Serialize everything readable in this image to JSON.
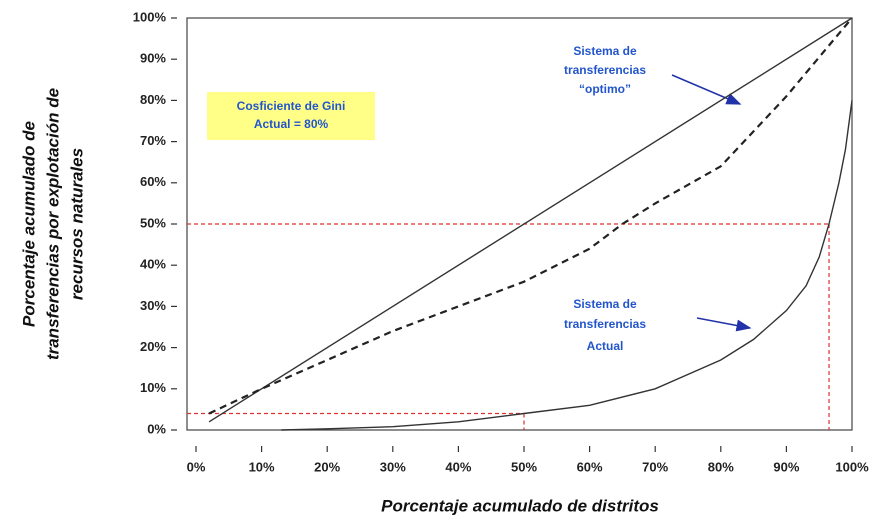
{
  "chart_data": {
    "type": "line",
    "xlabel": "Porcentaje acumulado de distritos",
    "ylabel": [
      "Porcentaje acumulado de",
      "transferencias por explotación de",
      "recursos naturales"
    ],
    "xlim": [
      0,
      100
    ],
    "ylim": [
      0,
      100
    ],
    "xticks": [
      {
        "value": 0,
        "label": "0%"
      },
      {
        "value": 10,
        "label": "10%"
      },
      {
        "value": 20,
        "label": "20%"
      },
      {
        "value": 30,
        "label": "30%"
      },
      {
        "value": 40,
        "label": "40%"
      },
      {
        "value": 50,
        "label": "50%"
      },
      {
        "value": 60,
        "label": "60%"
      },
      {
        "value": 70,
        "label": "70%"
      },
      {
        "value": 80,
        "label": "80%"
      },
      {
        "value": 90,
        "label": "90%"
      },
      {
        "value": 100,
        "label": "100%"
      }
    ],
    "yticks": [
      {
        "value": 0,
        "label": "0%"
      },
      {
        "value": 10,
        "label": "10%"
      },
      {
        "value": 20,
        "label": "20%"
      },
      {
        "value": 30,
        "label": "30%"
      },
      {
        "value": 40,
        "label": "40%"
      },
      {
        "value": 50,
        "label": "50%"
      },
      {
        "value": 60,
        "label": "60%"
      },
      {
        "value": 70,
        "label": "70%"
      },
      {
        "value": 80,
        "label": "80%"
      },
      {
        "value": 90,
        "label": "90%"
      },
      {
        "value": 100,
        "label": "100%"
      }
    ],
    "series": [
      {
        "color": "#333333",
        "dash": false,
        "x": [
          2,
          100
        ],
        "values": [
          2,
          100
        ]
      },
      {
        "color": "#222222",
        "dash": true,
        "x": [
          2,
          10,
          20,
          30,
          40,
          50,
          60,
          65,
          70,
          80,
          90,
          100
        ],
        "values": [
          4,
          10,
          17,
          24,
          30,
          36,
          44,
          50,
          55,
          64,
          81,
          100
        ]
      },
      {
        "color": "#333333",
        "dash": false,
        "x": [
          13,
          20,
          30,
          40,
          50,
          60,
          70,
          80,
          85,
          90,
          93,
          95,
          96.5,
          98,
          99,
          100
        ],
        "values": [
          0,
          0.3,
          0.8,
          2,
          4,
          6,
          10,
          17,
          22,
          29,
          35,
          42,
          50,
          60,
          68,
          80
        ]
      }
    ],
    "guides": [
      {
        "x": 96.5,
        "y": 50
      },
      {
        "x": 50,
        "y": 4
      }
    ],
    "guide_color": "#e03030",
    "annotations": {
      "optimo": [
        "Sistema de",
        "transferencias",
        "“optimo”"
      ],
      "actual": [
        "Sistema de",
        "transferencias",
        "Actual"
      ],
      "gini": [
        "Cosficiente de Gini",
        "Actual = 80%"
      ]
    }
  }
}
